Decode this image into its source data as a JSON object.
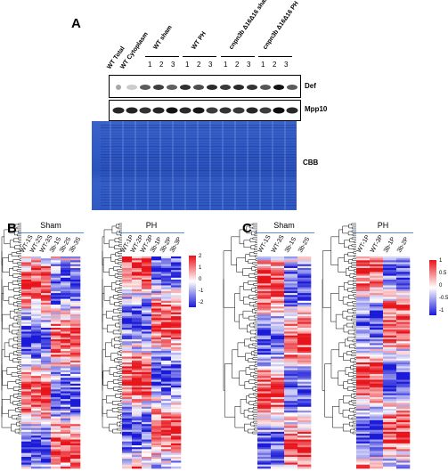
{
  "panelA": {
    "letter": "A",
    "lane_labels": [
      "WT Total",
      "WT Cytoplasm"
    ],
    "groups": [
      {
        "label": "WT sham"
      },
      {
        "label": "WT PH"
      },
      {
        "label": "cnpn3b Δ16Δ16 sham"
      },
      {
        "label": "cnpn3b Δ16Δ16 PH"
      }
    ],
    "replicate_numbers": [
      "1",
      "2",
      "3"
    ],
    "bands": [
      "Def",
      "Mpp10"
    ],
    "cbb_label": "CBB"
  },
  "panelB": {
    "letter": "B",
    "groups": [
      {
        "label": "Sham",
        "columns": [
          "WT-1S",
          "WT-2S",
          "WT-3S",
          "3b-1S",
          "3b-2S",
          "3b-3S"
        ]
      },
      {
        "label": "PH",
        "columns": [
          "WT-1P",
          "WT-2P",
          "WT-3P",
          "3b-1P",
          "3b-2P",
          "3b-3P"
        ]
      }
    ],
    "colorbar_ticks": [
      "2",
      "1",
      "0",
      "-1",
      "-2"
    ],
    "colors": {
      "high": "#e8141c",
      "mid": "#ffffff",
      "low": "#1a1ad8"
    }
  },
  "panelC": {
    "letter": "C",
    "groups": [
      {
        "label": "Sham",
        "columns": [
          "WT-1S",
          "WT-3S",
          "3b-1S",
          "3b-2S"
        ]
      },
      {
        "label": "PH",
        "columns": [
          "WT-1P",
          "WT-3P",
          "3b-1P",
          "3b-2P"
        ]
      }
    ],
    "colorbar_ticks": [
      "1",
      "0.5",
      "0",
      "-0.5",
      "-1"
    ],
    "colors": {
      "high": "#e8141c",
      "mid": "#ffffff",
      "low": "#1a1ad8"
    }
  }
}
